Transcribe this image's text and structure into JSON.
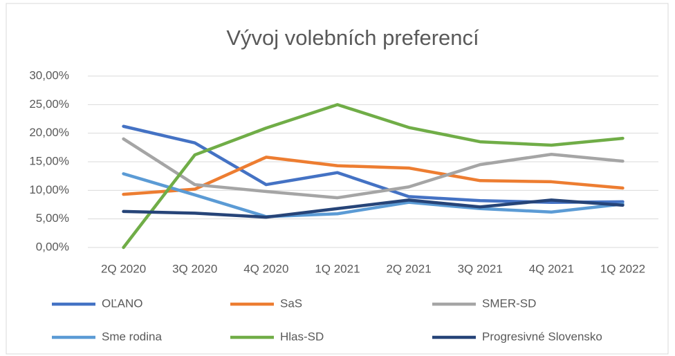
{
  "chart_data": {
    "type": "line",
    "title": "Vývoj volebních preferencí",
    "categories": [
      "2Q 2020",
      "3Q 2020",
      "4Q 2020",
      "1Q 2021",
      "2Q 2021",
      "3Q 2021",
      "4Q 2021",
      "1Q 2022"
    ],
    "ylim": [
      0,
      30
    ],
    "yticks": [
      {
        "value": 0,
        "label": "0,00%"
      },
      {
        "value": 5,
        "label": "5,00%"
      },
      {
        "value": 10,
        "label": "10,00%"
      },
      {
        "value": 15,
        "label": "15,00%"
      },
      {
        "value": 20,
        "label": "20,00%"
      },
      {
        "value": 25,
        "label": "25,00%"
      },
      {
        "value": 30,
        "label": "30,00%"
      }
    ],
    "grid": true,
    "legend": "bottom",
    "series": [
      {
        "name": "OĽANO",
        "color": "#4472c4",
        "values": [
          21.2,
          18.3,
          11.0,
          13.1,
          8.9,
          8.2,
          7.9,
          8.0
        ]
      },
      {
        "name": "SaS",
        "color": "#ed7d31",
        "values": [
          9.3,
          10.2,
          15.8,
          14.3,
          13.9,
          11.7,
          11.5,
          10.4
        ]
      },
      {
        "name": "SMER-SD",
        "color": "#a5a5a5",
        "values": [
          19.0,
          11.0,
          9.8,
          8.7,
          10.6,
          14.5,
          16.3,
          15.1
        ]
      },
      {
        "name": "Sme rodina",
        "color": "#5b9bd5",
        "values": [
          12.9,
          9.2,
          5.4,
          5.9,
          7.9,
          6.8,
          6.2,
          7.6
        ]
      },
      {
        "name": "Hlas-SD",
        "color": "#70ad47",
        "values": [
          0,
          16.2,
          20.9,
          25.0,
          21.0,
          18.5,
          17.9,
          19.1
        ]
      },
      {
        "name": "Progresivné Slovensko",
        "color": "#264478",
        "values": [
          6.3,
          6.0,
          5.3,
          6.8,
          8.3,
          7.1,
          8.3,
          7.4
        ]
      }
    ]
  }
}
